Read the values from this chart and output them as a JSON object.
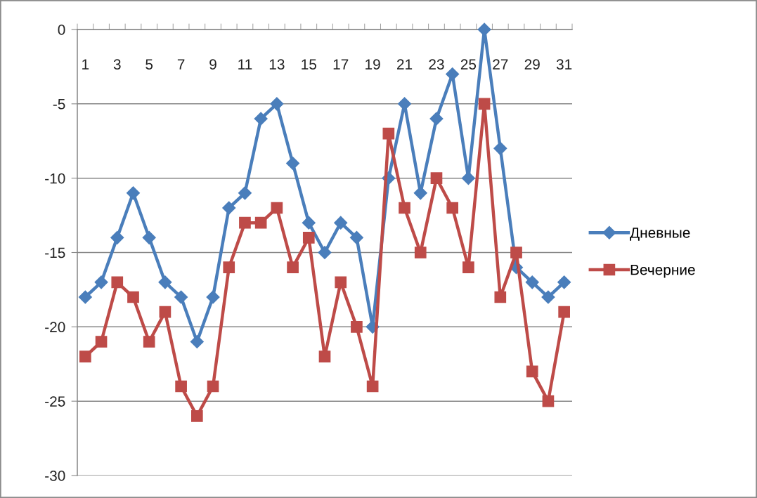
{
  "chart_data": {
    "type": "line",
    "categories": [
      "1",
      null,
      "3",
      null,
      "5",
      null,
      "7",
      null,
      "9",
      null,
      "11",
      null,
      "13",
      null,
      "15",
      null,
      "17",
      null,
      "19",
      null,
      "21",
      null,
      "23",
      null,
      "25",
      null,
      "27",
      null,
      "29",
      null,
      "31"
    ],
    "series": [
      {
        "name": "Дневные",
        "color": "#4a7ebb",
        "marker": "diamond",
        "values": [
          -18,
          -17,
          -14,
          -11,
          -14,
          -17,
          -18,
          -21,
          -18,
          -12,
          -11,
          -6,
          -5,
          -9,
          -13,
          -15,
          -13,
          -14,
          -20,
          -10,
          -5,
          -11,
          -6,
          -3,
          -10,
          0,
          -8,
          -16,
          -17,
          -18,
          -17
        ]
      },
      {
        "name": "Вечерние",
        "color": "#be4b48",
        "marker": "square",
        "values": [
          -22,
          -21,
          -17,
          -18,
          -21,
          -19,
          -24,
          -26,
          -24,
          -16,
          -13,
          -13,
          -12,
          -16,
          -14,
          -22,
          -17,
          -20,
          -24,
          -7,
          -12,
          -15,
          -10,
          -12,
          -16,
          -5,
          -18,
          -15,
          -23,
          -25,
          -19
        ]
      }
    ],
    "ylim": [
      -30,
      0
    ],
    "yticks": [
      -30,
      -25,
      -20,
      -15,
      -10,
      -5,
      0
    ],
    "grid": "y",
    "legend": "right",
    "line_style": "solid"
  }
}
